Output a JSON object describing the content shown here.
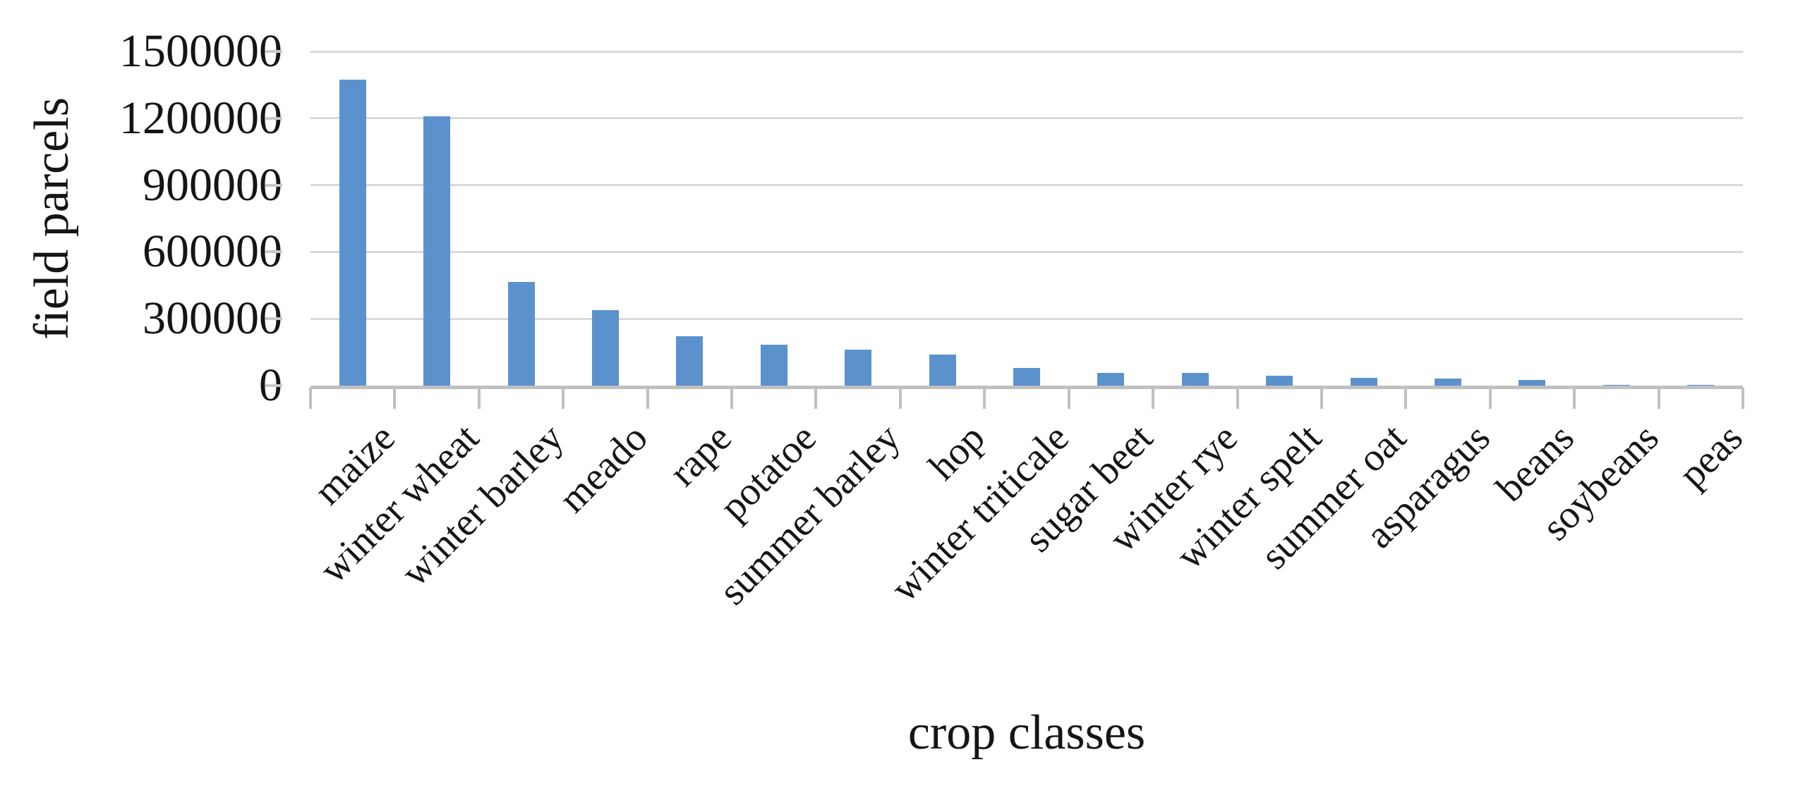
{
  "chart_data": {
    "type": "bar",
    "title": "",
    "xlabel": "crop classes",
    "ylabel": "field parcels",
    "categories": [
      "maize",
      "winter wheat",
      "winter barley",
      "meado",
      "rape",
      "potatoe",
      "summer barley",
      "hop",
      "winter triticale",
      "sugar beet",
      "winter rye",
      "winter spelt",
      "summer oat",
      "asparagus",
      "beans",
      "soybeans",
      "peas"
    ],
    "values": [
      1375000,
      1210000,
      465000,
      340000,
      220000,
      185000,
      162000,
      140000,
      80000,
      58000,
      56000,
      45000,
      34000,
      33000,
      25000,
      3000,
      2000
    ],
    "ylim": [
      0,
      1500000
    ],
    "yticks": [
      0,
      300000,
      600000,
      900000,
      1200000,
      1500000
    ],
    "grid": true,
    "legend": "none",
    "colors": {
      "bar": "#5b92ce",
      "gridline": "#d9d9d9",
      "axis": "#c0c0c0",
      "text": "#151515"
    }
  }
}
